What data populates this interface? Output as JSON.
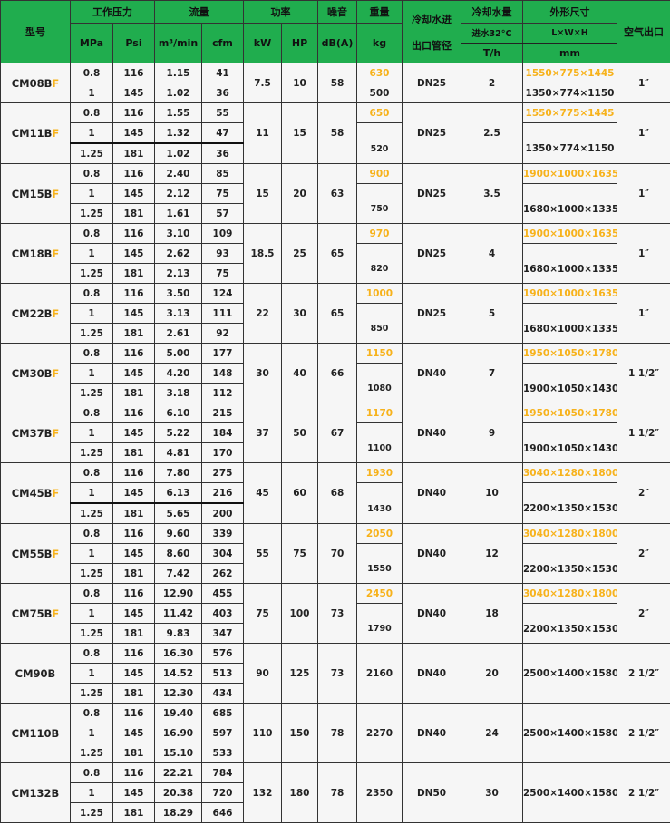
{
  "colors": {
    "header_bg": "#20ad4e",
    "highlight": "#f7b21b"
  },
  "header": {
    "model": "型号",
    "pressure": "工作压力",
    "mpa": "MPa",
    "psi": "Psi",
    "flow": "流量",
    "m3min": "m³/min",
    "cfm": "cfm",
    "power": "功率",
    "kw": "kW",
    "hp": "HP",
    "noise": "噪音",
    "dba": "dB(A)",
    "weight": "重量",
    "kg": "kg",
    "pipe_line1": "冷却水进",
    "pipe_line2": "出口管径",
    "cooling": "冷却水量",
    "cooling_sub": "进水32°C",
    "cooling_unit": "T/h",
    "dims": "外形尺寸",
    "dims_sub": "L×W×H",
    "dims_unit": "mm",
    "outlet": "空气出口"
  },
  "rows": [
    {
      "model": "CM08B",
      "suffix": "F",
      "pressures": [
        [
          "0.8",
          "116",
          "1.15",
          "41"
        ],
        [
          "1",
          "145",
          "1.02",
          "36"
        ]
      ],
      "kw": "7.5",
      "hp": "10",
      "noise": "58",
      "weight_hl": "630",
      "weight": "500",
      "pipe": "DN25",
      "cooling": "2",
      "dims_hl": "1550×775×1445",
      "dims": "1350×774×1150",
      "outlet": "1″"
    },
    {
      "model": "CM11B",
      "suffix": "F",
      "pressures": [
        [
          "0.8",
          "116",
          "1.55",
          "55"
        ],
        [
          "1",
          "145",
          "1.32",
          "47"
        ],
        [
          "1.25",
          "181",
          "1.02",
          "36"
        ]
      ],
      "kw": "11",
      "hp": "15",
      "noise": "58",
      "weight_hl": "650",
      "weight": "520",
      "pipe": "DN25",
      "cooling": "2.5",
      "dims_hl": "1550×775×1445",
      "dims": "1350×774×1150",
      "outlet": "1″"
    },
    {
      "model": "CM15B",
      "suffix": "F",
      "pressures": [
        [
          "0.8",
          "116",
          "2.40",
          "85"
        ],
        [
          "1",
          "145",
          "2.12",
          "75"
        ],
        [
          "1.25",
          "181",
          "1.61",
          "57"
        ]
      ],
      "kw": "15",
      "hp": "20",
      "noise": "63",
      "weight_hl": "900",
      "weight": "750",
      "pipe": "DN25",
      "cooling": "3.5",
      "dims_hl": "1900×1000×1635",
      "dims": "1680×1000×1335",
      "outlet": "1″"
    },
    {
      "model": "CM18B",
      "suffix": "F",
      "pressures": [
        [
          "0.8",
          "116",
          "3.10",
          "109"
        ],
        [
          "1",
          "145",
          "2.62",
          "93"
        ],
        [
          "1.25",
          "181",
          "2.13",
          "75"
        ]
      ],
      "kw": "18.5",
      "hp": "25",
      "noise": "65",
      "weight_hl": "970",
      "weight": "820",
      "pipe": "DN25",
      "cooling": "4",
      "dims_hl": "1900×1000×1635",
      "dims": "1680×1000×1335",
      "outlet": "1″"
    },
    {
      "model": "CM22B",
      "suffix": "F",
      "pressures": [
        [
          "0.8",
          "116",
          "3.50",
          "124"
        ],
        [
          "1",
          "145",
          "3.13",
          "111"
        ],
        [
          "1.25",
          "181",
          "2.61",
          "92"
        ]
      ],
      "kw": "22",
      "hp": "30",
      "noise": "65",
      "weight_hl": "1000",
      "weight": "850",
      "pipe": "DN25",
      "cooling": "5",
      "dims_hl": "1900×1000×1635",
      "dims": "1680×1000×1335",
      "outlet": "1″"
    },
    {
      "model": "CM30B",
      "suffix": "F",
      "pressures": [
        [
          "0.8",
          "116",
          "5.00",
          "177"
        ],
        [
          "1",
          "145",
          "4.20",
          "148"
        ],
        [
          "1.25",
          "181",
          "3.18",
          "112"
        ]
      ],
      "kw": "30",
      "hp": "40",
      "noise": "66",
      "weight_hl": "1150",
      "weight": "1080",
      "pipe": "DN40",
      "cooling": "7",
      "dims_hl": "1950×1050×1780",
      "dims": "1900×1050×1430",
      "outlet": "1 1/2″"
    },
    {
      "model": "CM37B",
      "suffix": "F",
      "pressures": [
        [
          "0.8",
          "116",
          "6.10",
          "215"
        ],
        [
          "1",
          "145",
          "5.22",
          "184"
        ],
        [
          "1.25",
          "181",
          "4.81",
          "170"
        ]
      ],
      "kw": "37",
      "hp": "50",
      "noise": "67",
      "weight_hl": "1170",
      "weight": "1100",
      "pipe": "DN40",
      "cooling": "9",
      "dims_hl": "1950×1050×1780",
      "dims": "1900×1050×1430",
      "outlet": "1 1/2″"
    },
    {
      "model": "CM45B",
      "suffix": "F",
      "pressures": [
        [
          "0.8",
          "116",
          "7.80",
          "275"
        ],
        [
          "1",
          "145",
          "6.13",
          "216"
        ],
        [
          "1.25",
          "181",
          "5.65",
          "200"
        ]
      ],
      "kw": "45",
      "hp": "60",
      "noise": "68",
      "weight_hl": "1930",
      "weight": "1430",
      "pipe": "DN40",
      "cooling": "10",
      "dims_hl": "3040×1280×1800",
      "dims": "2200×1350×1530",
      "outlet": "2″"
    },
    {
      "model": "CM55B",
      "suffix": "F",
      "pressures": [
        [
          "0.8",
          "116",
          "9.60",
          "339"
        ],
        [
          "1",
          "145",
          "8.60",
          "304"
        ],
        [
          "1.25",
          "181",
          "7.42",
          "262"
        ]
      ],
      "kw": "55",
      "hp": "75",
      "noise": "70",
      "weight_hl": "2050",
      "weight": "1550",
      "pipe": "DN40",
      "cooling": "12",
      "dims_hl": "3040×1280×1800",
      "dims": "2200×1350×1530",
      "outlet": "2″"
    },
    {
      "model": "CM75B",
      "suffix": "F",
      "pressures": [
        [
          "0.8",
          "116",
          "12.90",
          "455"
        ],
        [
          "1",
          "145",
          "11.42",
          "403"
        ],
        [
          "1.25",
          "181",
          "9.83",
          "347"
        ]
      ],
      "kw": "75",
      "hp": "100",
      "noise": "73",
      "weight_hl": "2450",
      "weight": "1790",
      "pipe": "DN40",
      "cooling": "18",
      "dims_hl": "3040×1280×1800",
      "dims": "2200×1350×1530",
      "outlet": "2″"
    },
    {
      "model": "CM90B",
      "suffix": "",
      "pressures": [
        [
          "0.8",
          "116",
          "16.30",
          "576"
        ],
        [
          "1",
          "145",
          "14.52",
          "513"
        ],
        [
          "1.25",
          "181",
          "12.30",
          "434"
        ]
      ],
      "kw": "90",
      "hp": "125",
      "noise": "73",
      "weight": "2160",
      "pipe": "DN40",
      "cooling": "20",
      "dims": "2500×1400×1580",
      "outlet": "2 1/2″"
    },
    {
      "model": "CM110B",
      "suffix": "",
      "pressures": [
        [
          "0.8",
          "116",
          "19.40",
          "685"
        ],
        [
          "1",
          "145",
          "16.90",
          "597"
        ],
        [
          "1.25",
          "181",
          "15.10",
          "533"
        ]
      ],
      "kw": "110",
      "hp": "150",
      "noise": "78",
      "weight": "2270",
      "pipe": "DN40",
      "cooling": "24",
      "dims": "2500×1400×1580",
      "outlet": "2 1/2″"
    },
    {
      "model": "CM132B",
      "suffix": "",
      "pressures": [
        [
          "0.8",
          "116",
          "22.21",
          "784"
        ],
        [
          "1",
          "145",
          "20.38",
          "720"
        ],
        [
          "1.25",
          "181",
          "18.29",
          "646"
        ]
      ],
      "kw": "132",
      "hp": "180",
      "noise": "78",
      "weight": "2350",
      "pipe": "DN50",
      "cooling": "30",
      "dims": "2500×1400×1580",
      "outlet": "2 1/2″"
    }
  ]
}
